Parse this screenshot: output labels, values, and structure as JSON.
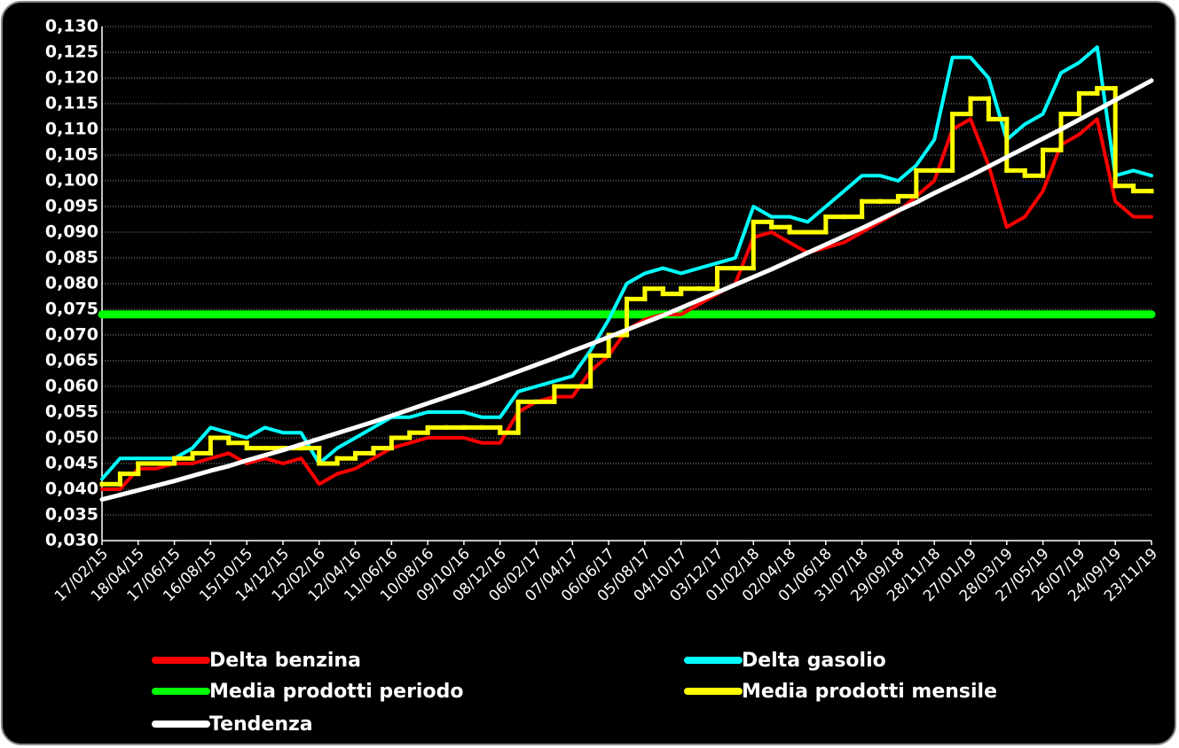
{
  "chart_data": {
    "type": "line",
    "categories": [
      "17/02/15",
      null,
      "18/04/15",
      null,
      "17/06/15",
      null,
      "16/08/15",
      null,
      "15/10/15",
      null,
      "14/12/15",
      null,
      "12/02/16",
      null,
      "12/04/16",
      null,
      "11/06/16",
      null,
      "10/08/16",
      null,
      "09/10/16",
      null,
      "08/12/16",
      null,
      "06/02/17",
      null,
      "07/04/17",
      null,
      "06/06/17",
      null,
      "05/08/17",
      null,
      "04/10/17",
      null,
      "03/12/17",
      null,
      "01/02/18",
      null,
      "02/04/18",
      null,
      "01/06/18",
      null,
      "31/07/18",
      null,
      "29/09/18",
      null,
      "28/11/18",
      null,
      "27/01/19",
      null,
      "28/03/19",
      null,
      "27/05/19",
      null,
      "26/07/19",
      null,
      "24/09/19",
      null,
      "23/11/19"
    ],
    "series": [
      {
        "name": "Delta benzina",
        "color": "#ff0000",
        "width": 4,
        "values": [
          0.04,
          0.04,
          0.044,
          0.044,
          0.045,
          0.045,
          0.046,
          0.047,
          0.045,
          0.046,
          0.045,
          0.046,
          0.041,
          0.043,
          0.044,
          0.046,
          0.048,
          0.049,
          0.05,
          0.05,
          0.05,
          0.049,
          0.049,
          0.055,
          0.057,
          0.058,
          0.058,
          0.063,
          0.066,
          0.071,
          0.073,
          0.074,
          0.074,
          0.076,
          0.078,
          0.08,
          0.089,
          0.09,
          0.088,
          0.086,
          0.087,
          0.088,
          0.09,
          0.092,
          0.094,
          0.097,
          0.1,
          0.11,
          0.112,
          0.103,
          0.091,
          0.093,
          0.098,
          0.107,
          0.109,
          0.112,
          0.096,
          0.093,
          0.093
        ]
      },
      {
        "name": "Delta gasolio",
        "color": "#00ffff",
        "width": 4,
        "values": [
          0.042,
          0.046,
          0.046,
          0.046,
          0.046,
          0.048,
          0.052,
          0.051,
          0.05,
          0.052,
          0.051,
          0.051,
          0.045,
          0.048,
          0.05,
          0.052,
          0.054,
          0.054,
          0.055,
          0.055,
          0.055,
          0.054,
          0.054,
          0.059,
          0.06,
          0.061,
          0.062,
          0.067,
          0.073,
          0.08,
          0.082,
          0.083,
          0.082,
          0.083,
          0.084,
          0.085,
          0.095,
          0.093,
          0.093,
          0.092,
          0.095,
          0.098,
          0.101,
          0.101,
          0.1,
          0.103,
          0.108,
          0.124,
          0.124,
          0.12,
          0.108,
          0.111,
          0.113,
          0.121,
          0.123,
          0.126,
          0.101,
          0.102,
          0.101
        ]
      },
      {
        "name": "Media prodotti periodo",
        "color": "#00ff00",
        "width": 9,
        "values": [
          0.074,
          0.074,
          0.074,
          0.074,
          0.074,
          0.074,
          0.074,
          0.074,
          0.074,
          0.074,
          0.074,
          0.074,
          0.074,
          0.074,
          0.074,
          0.074,
          0.074,
          0.074,
          0.074,
          0.074,
          0.074,
          0.074,
          0.074,
          0.074,
          0.074,
          0.074,
          0.074,
          0.074,
          0.074,
          0.074,
          0.074,
          0.074,
          0.074,
          0.074,
          0.074,
          0.074,
          0.074,
          0.074,
          0.074,
          0.074,
          0.074,
          0.074,
          0.074,
          0.074,
          0.074,
          0.074,
          0.074,
          0.074,
          0.074,
          0.074,
          0.074,
          0.074,
          0.074,
          0.074,
          0.074,
          0.074,
          0.074,
          0.074,
          0.074
        ]
      },
      {
        "name": "Media prodotti mensile",
        "color": "#ffff00",
        "width": 5,
        "step": true,
        "values": [
          0.041,
          0.043,
          0.045,
          0.045,
          0.046,
          0.047,
          0.05,
          0.049,
          0.048,
          0.048,
          0.048,
          0.048,
          0.045,
          0.046,
          0.047,
          0.048,
          0.05,
          0.051,
          0.052,
          0.052,
          0.052,
          0.052,
          0.051,
          0.057,
          0.057,
          0.06,
          0.06,
          0.066,
          0.07,
          0.077,
          0.079,
          0.078,
          0.079,
          0.079,
          0.083,
          0.083,
          0.092,
          0.091,
          0.09,
          0.09,
          0.093,
          0.093,
          0.096,
          0.096,
          0.097,
          0.102,
          0.102,
          0.113,
          0.116,
          0.112,
          0.102,
          0.101,
          0.106,
          0.113,
          0.117,
          0.118,
          0.099,
          0.098,
          0.098
        ]
      },
      {
        "name": "Tendenza",
        "color": "#ffffff",
        "width": 5,
        "values": [
          0.038,
          0.0389,
          0.0398,
          0.0407,
          0.0416,
          0.0426,
          0.0436,
          0.0445,
          0.0456,
          0.0466,
          0.0476,
          0.0487,
          0.0498,
          0.0509,
          0.052,
          0.0531,
          0.0543,
          0.0555,
          0.0567,
          0.0579,
          0.0591,
          0.0603,
          0.0616,
          0.0629,
          0.0642,
          0.0655,
          0.0669,
          0.0682,
          0.0696,
          0.071,
          0.0724,
          0.0738,
          0.0753,
          0.0768,
          0.0783,
          0.0798,
          0.0813,
          0.0828,
          0.0844,
          0.086,
          0.0876,
          0.0892,
          0.0908,
          0.0925,
          0.0942,
          0.0958,
          0.0976,
          0.0993,
          0.101,
          0.1028,
          0.1046,
          0.1064,
          0.1082,
          0.11,
          0.1119,
          0.1138,
          0.1157,
          0.1176,
          0.1195
        ]
      }
    ],
    "ylim": [
      0.03,
      0.13
    ],
    "yticks": [
      {
        "value": 0.03,
        "label": "0,030"
      },
      {
        "value": 0.035,
        "label": "0,035"
      },
      {
        "value": 0.04,
        "label": "0,040"
      },
      {
        "value": 0.045,
        "label": "0,045"
      },
      {
        "value": 0.05,
        "label": "0,050"
      },
      {
        "value": 0.055,
        "label": "0,055"
      },
      {
        "value": 0.06,
        "label": "0,060"
      },
      {
        "value": 0.065,
        "label": "0,065"
      },
      {
        "value": 0.07,
        "label": "0,070"
      },
      {
        "value": 0.075,
        "label": "0,075"
      },
      {
        "value": 0.08,
        "label": "0,080"
      },
      {
        "value": 0.085,
        "label": "0,085"
      },
      {
        "value": 0.09,
        "label": "0,090"
      },
      {
        "value": 0.095,
        "label": "0,095"
      },
      {
        "value": 0.1,
        "label": "0,100"
      },
      {
        "value": 0.105,
        "label": "0,105"
      },
      {
        "value": 0.11,
        "label": "0,110"
      },
      {
        "value": 0.115,
        "label": "0,115"
      },
      {
        "value": 0.12,
        "label": "0,120"
      },
      {
        "value": 0.125,
        "label": "0,125"
      },
      {
        "value": 0.13,
        "label": "0,130"
      }
    ],
    "grid": true,
    "legend": "bottom"
  }
}
